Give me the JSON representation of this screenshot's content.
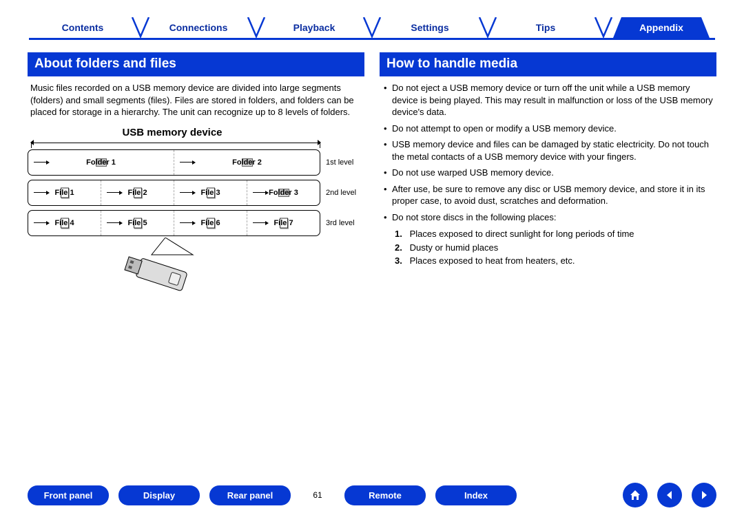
{
  "nav": {
    "tabs": [
      {
        "label": "Contents",
        "active": false
      },
      {
        "label": "Connections",
        "active": false
      },
      {
        "label": "Playback",
        "active": false
      },
      {
        "label": "Settings",
        "active": false
      },
      {
        "label": "Tips",
        "active": false
      },
      {
        "label": "Appendix",
        "active": true
      }
    ],
    "accent_color": "#0638d3"
  },
  "left": {
    "header": "About folders and files",
    "paragraph": "Music files recorded on a USB memory device are divided into large segments (folders) and small segments (files). Files are stored in folders, and folders can be placed for storage in a hierarchy. The unit can recognize up to 8 levels of folders.",
    "diagram": {
      "title": "USB memory device",
      "levels": [
        {
          "label": "1st level",
          "cells": [
            "Folder 1",
            "Folder 2"
          ],
          "types": [
            "folder",
            "folder"
          ]
        },
        {
          "label": "2nd level",
          "cells": [
            "File 1",
            "File 2",
            "File 3",
            "Folder 3"
          ],
          "types": [
            "file",
            "file",
            "file",
            "folder"
          ]
        },
        {
          "label": "3rd level",
          "cells": [
            "File 4",
            "File 5",
            "File 6",
            "File 7"
          ],
          "types": [
            "file",
            "file",
            "file",
            "file"
          ]
        }
      ]
    }
  },
  "right": {
    "header": "How to handle media",
    "bullets": [
      "Do not eject a USB memory device or turn off the unit while a USB memory device is being played. This may result in malfunction or loss of the USB memory device's data.",
      "Do not attempt to open or modify a USB memory device.",
      "USB memory device and files can be damaged by static electricity. Do not touch the metal contacts of a USB memory device with your fingers.",
      "Do not use warped USB memory device.",
      "After use, be sure to remove any disc or USB memory device, and store it in its proper case, to avoid dust, scratches and deformation.",
      "Do not store discs in the following places:"
    ],
    "ordered": [
      "Places exposed to direct sunlight for long periods of time",
      "Dusty or humid places",
      "Places exposed to heat from heaters, etc."
    ]
  },
  "bottom": {
    "buttons": [
      "Front panel",
      "Display",
      "Rear panel"
    ],
    "page": "61",
    "buttons2": [
      "Remote",
      "Index"
    ],
    "circles": [
      "home-icon",
      "prev-icon",
      "next-icon"
    ]
  }
}
